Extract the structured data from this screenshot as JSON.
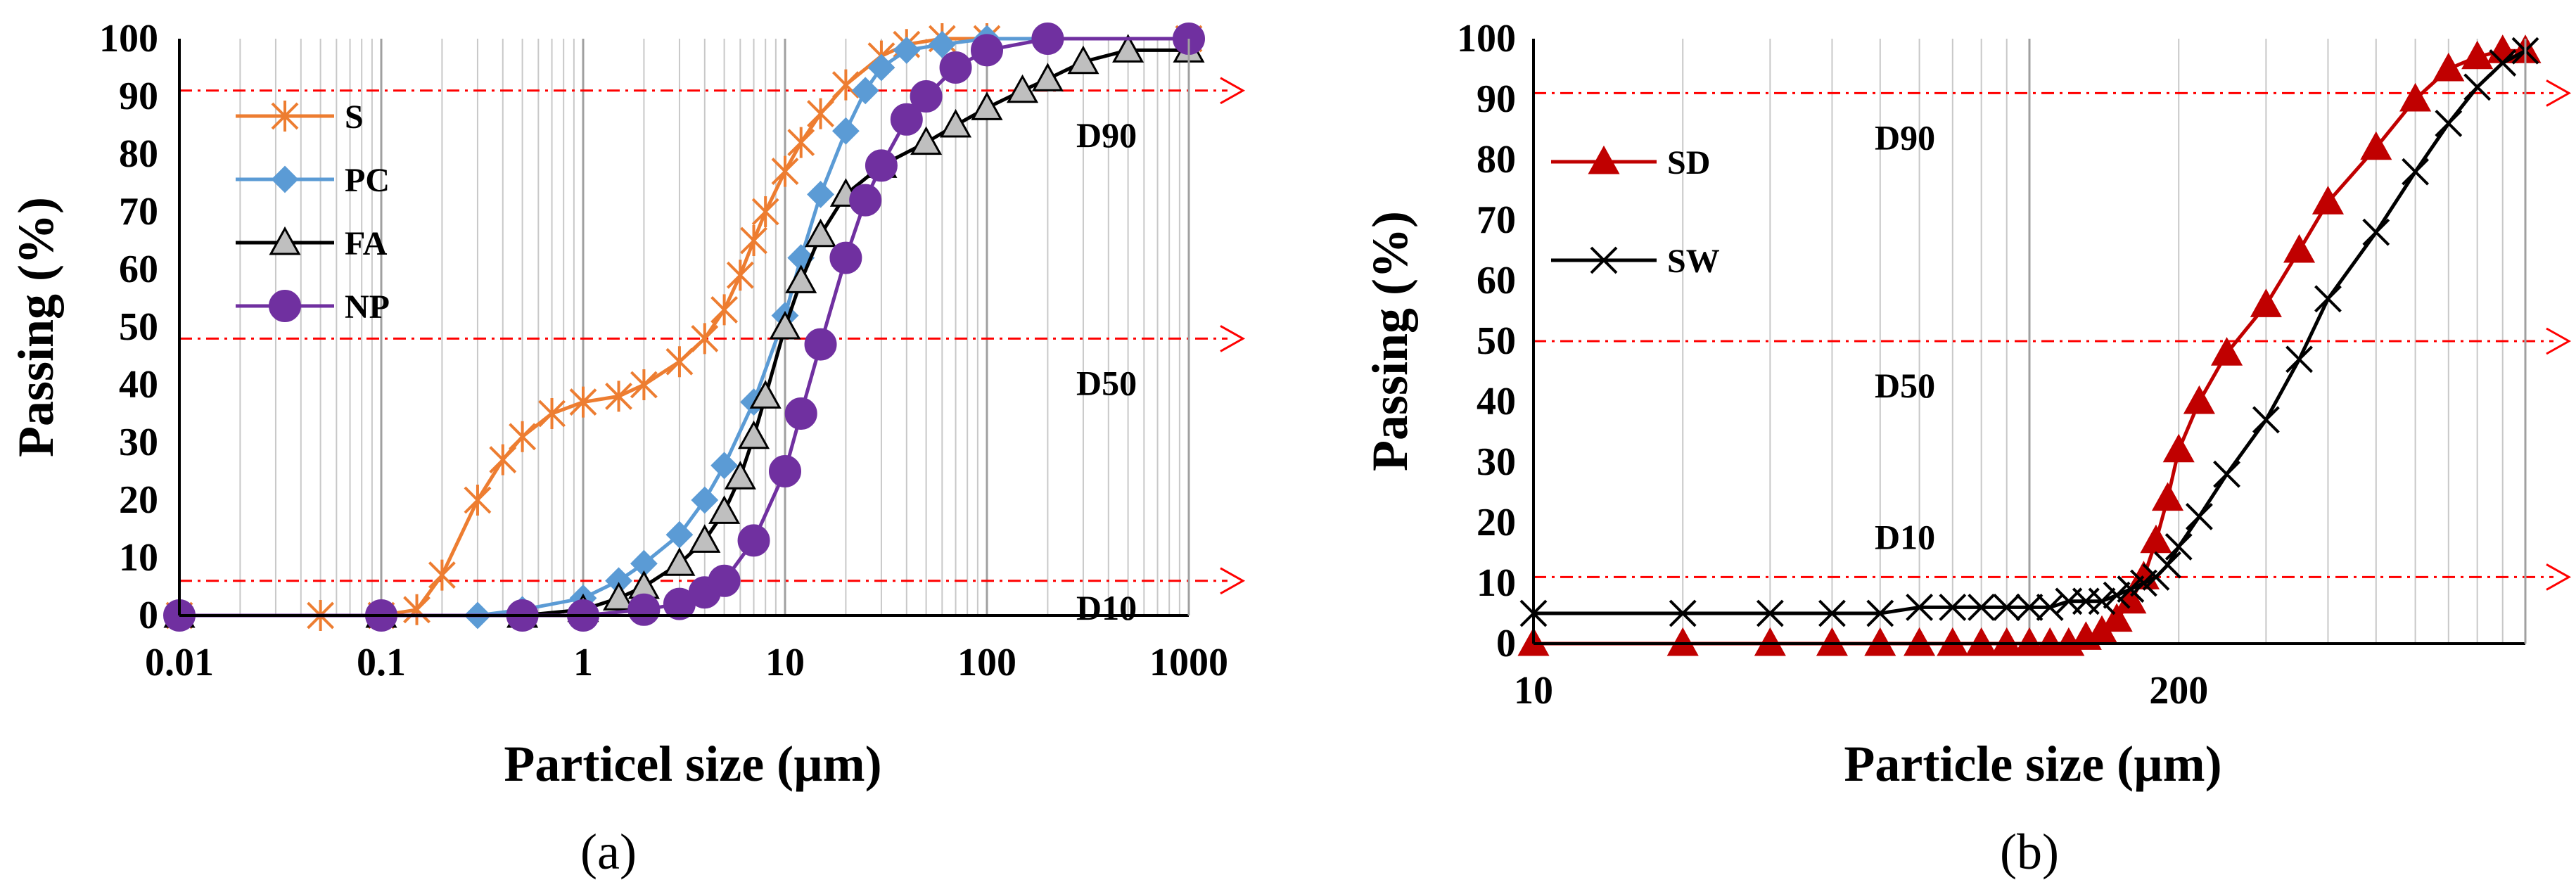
{
  "chart_data": [
    {
      "id": "a",
      "type": "line",
      "caption": "(a)",
      "xscale": "log",
      "xlim": [
        0.01,
        1000
      ],
      "ylim": [
        0,
        100
      ],
      "xticks": [
        0.01,
        0.1,
        1,
        10,
        100,
        1000
      ],
      "xtick_labels": [
        "0.01",
        "0.1",
        "1",
        "10",
        "100",
        "1000"
      ],
      "yticks": [
        0,
        10,
        20,
        30,
        40,
        50,
        60,
        70,
        80,
        90,
        100
      ],
      "xlabel": "Particel size (µm)",
      "ylabel": "Passing (%)",
      "ref_lines": [
        {
          "label": "D90",
          "y": 91
        },
        {
          "label": "D50",
          "y": 48
        },
        {
          "label": "D10",
          "y": 6
        }
      ],
      "legend_position": "top-left",
      "series": [
        {
          "name": "S",
          "color": "#ED7D31",
          "marker": "star",
          "x": [
            0.01,
            0.05,
            0.1,
            0.15,
            0.2,
            0.3,
            0.4,
            0.5,
            0.7,
            1,
            1.5,
            2,
            3,
            4,
            5,
            6,
            7,
            8,
            10,
            12,
            15,
            20,
            30,
            40,
            60,
            100,
            1000
          ],
          "y": [
            0,
            0,
            0,
            1,
            7,
            20,
            27,
            31,
            35,
            37,
            38,
            40,
            44,
            48,
            53,
            59,
            65,
            70,
            77,
            82,
            87,
            92,
            97,
            99,
            100,
            100,
            100
          ]
        },
        {
          "name": "PC",
          "color": "#5B9BD5",
          "marker": "diamond",
          "x": [
            0.01,
            0.1,
            0.3,
            0.5,
            1,
            1.5,
            2,
            3,
            4,
            5,
            7,
            10,
            12,
            15,
            20,
            25,
            30,
            40,
            60,
            100,
            1000
          ],
          "y": [
            0,
            0,
            0,
            1,
            3,
            6,
            9,
            14,
            20,
            26,
            37,
            52,
            62,
            73,
            84,
            91,
            95,
            98,
            99,
            100,
            100
          ]
        },
        {
          "name": "FA",
          "color": "#000000",
          "marker": "triangle",
          "x": [
            0.01,
            0.1,
            0.5,
            1,
            1.5,
            2,
            3,
            4,
            5,
            6,
            7,
            8,
            10,
            12,
            15,
            20,
            30,
            50,
            70,
            100,
            150,
            200,
            300,
            500,
            1000
          ],
          "y": [
            0,
            0,
            0,
            1,
            3,
            5,
            9,
            13,
            18,
            24,
            31,
            38,
            50,
            58,
            66,
            73,
            78,
            82,
            85,
            88,
            91,
            93,
            96,
            98,
            98
          ]
        },
        {
          "name": "NP",
          "color": "#7030A0",
          "marker": "circle",
          "x": [
            0.01,
            0.1,
            0.5,
            1,
            2,
            3,
            4,
            5,
            7,
            10,
            12,
            15,
            20,
            25,
            30,
            40,
            50,
            70,
            100,
            200,
            1000
          ],
          "y": [
            0,
            0,
            0,
            0,
            1,
            2,
            4,
            6,
            13,
            25,
            35,
            47,
            62,
            72,
            78,
            86,
            90,
            95,
            98,
            100,
            100
          ]
        }
      ]
    },
    {
      "id": "b",
      "type": "line",
      "caption": "(b)",
      "xscale": "log",
      "xlim": [
        10,
        1000
      ],
      "ylim": [
        0,
        100
      ],
      "xticks": [
        10,
        200
      ],
      "xtick_labels": [
        "10",
        "200"
      ],
      "yticks": [
        0,
        10,
        20,
        30,
        40,
        50,
        60,
        70,
        80,
        90,
        100
      ],
      "xlabel": "Particle size (µm)",
      "ylabel": "Passing (%)",
      "ref_lines": [
        {
          "label": "D90",
          "y": 91
        },
        {
          "label": "D50",
          "y": 50
        },
        {
          "label": "D10",
          "y": 11
        }
      ],
      "legend_position": "top-left",
      "series": [
        {
          "name": "SD",
          "color": "#C00000",
          "marker": "triangle",
          "x": [
            10,
            20,
            30,
            40,
            50,
            60,
            70,
            80,
            90,
            100,
            110,
            120,
            130,
            140,
            150,
            160,
            170,
            180,
            190,
            200,
            220,
            250,
            300,
            350,
            400,
            500,
            600,
            700,
            800,
            900,
            1000
          ],
          "y": [
            0,
            0,
            0,
            0,
            0,
            0,
            0,
            0,
            0,
            0,
            0,
            0,
            1,
            2,
            4,
            7,
            11,
            17,
            24,
            32,
            40,
            48,
            56,
            65,
            73,
            82,
            90,
            95,
            97,
            98,
            98
          ]
        },
        {
          "name": "SW",
          "color": "#000000",
          "marker": "x",
          "x": [
            10,
            20,
            30,
            40,
            50,
            60,
            70,
            80,
            90,
            100,
            110,
            120,
            130,
            140,
            150,
            160,
            170,
            180,
            190,
            200,
            220,
            250,
            300,
            350,
            400,
            500,
            600,
            700,
            800,
            900,
            1000
          ],
          "y": [
            5,
            5,
            5,
            5,
            5,
            6,
            6,
            6,
            6,
            6,
            6,
            7,
            7,
            7,
            8,
            9,
            10,
            11,
            13,
            16,
            21,
            28,
            37,
            47,
            57,
            68,
            78,
            86,
            92,
            96,
            98
          ]
        }
      ]
    }
  ]
}
